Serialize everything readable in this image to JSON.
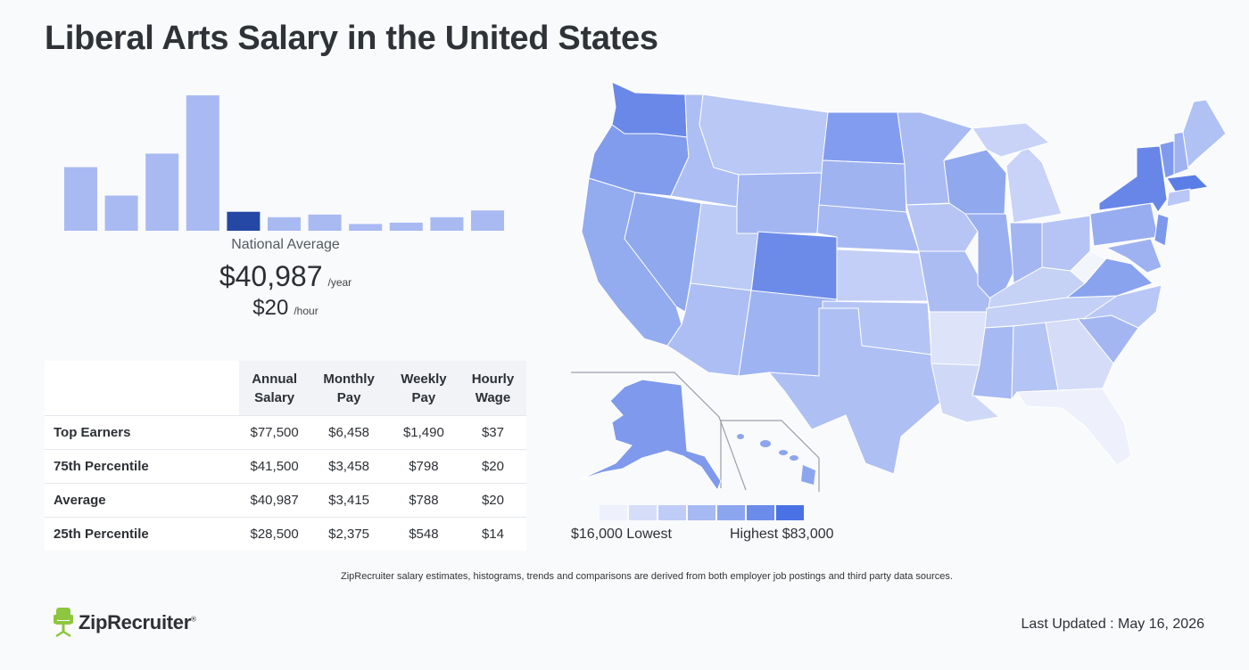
{
  "page": {
    "title": "Liberal Arts Salary in the United States"
  },
  "national": {
    "label": "National Average",
    "yearly": "$40,987",
    "yearly_unit": "/year",
    "hourly": "$20",
    "hourly_unit": "/hour"
  },
  "histogram": {
    "values": [
      0.47,
      0.26,
      0.57,
      1.0,
      0.14,
      0.1,
      0.12,
      0.05,
      0.06,
      0.1,
      0.15
    ],
    "highlight_index": 4,
    "bar_color": "#a9baf2",
    "highlight_color": "#2448a4"
  },
  "table": {
    "headers": [
      {
        "line1": "Annual",
        "line2": "Salary"
      },
      {
        "line1": "Monthly",
        "line2": "Pay"
      },
      {
        "line1": "Weekly",
        "line2": "Pay"
      },
      {
        "line1": "Hourly",
        "line2": "Wage"
      }
    ],
    "rows": [
      {
        "label": "Top Earners",
        "values": [
          "$77,500",
          "$6,458",
          "$1,490",
          "$37"
        ]
      },
      {
        "label": "75th Percentile",
        "values": [
          "$41,500",
          "$3,458",
          "$798",
          "$20"
        ]
      },
      {
        "label": "Average",
        "values": [
          "$40,987",
          "$3,415",
          "$788",
          "$20"
        ]
      },
      {
        "label": "25th Percentile",
        "values": [
          "$28,500",
          "$2,375",
          "$548",
          "$14"
        ]
      }
    ]
  },
  "map": {
    "legend_colors": [
      "#eef1fb",
      "#d5ddf8",
      "#bfccf6",
      "#a7b9f3",
      "#8ca5ef",
      "#6c8bea",
      "#4a72e6"
    ],
    "low_label": "$16,000 Lowest",
    "high_label": "Highest $83,000"
  },
  "footer": {
    "disclaimer": "ZipRecruiter salary estimates, histograms, trends and comparisons are derived from both employer job postings and third party data sources.",
    "logo_text": "ZipRecruiter",
    "logo_mark": "®",
    "updated": "Last Updated : May 16, 2026"
  }
}
